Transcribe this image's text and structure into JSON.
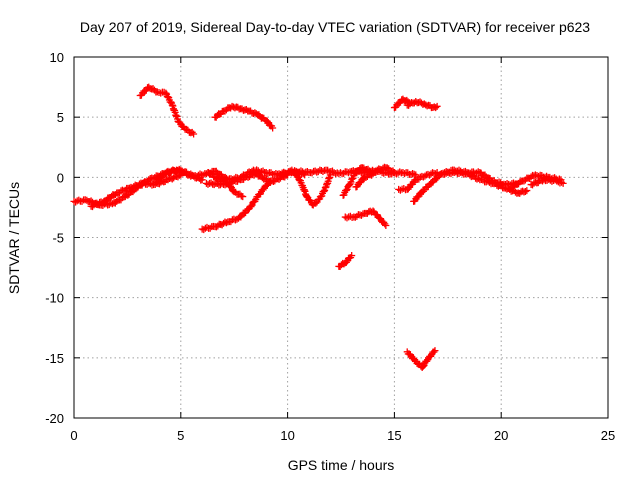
{
  "chart_data": {
    "type": "scatter",
    "title": "Day 207 of 2019, Sidereal Day-to-day VTEC variation (SDTVAR) for receiver p623",
    "xlabel": "GPS time / hours",
    "ylabel": "SDTVAR / TECUs",
    "xlim": [
      0,
      25
    ],
    "ylim": [
      -20,
      10
    ],
    "xticks": [
      0,
      5,
      10,
      15,
      20,
      25
    ],
    "yticks": [
      -20,
      -15,
      -10,
      -5,
      0,
      5,
      10
    ],
    "grid": true,
    "marker": "plus",
    "color": "#ff0000",
    "series": [
      {
        "name": "arc-1",
        "points": [
          [
            0.0,
            -2.0
          ],
          [
            0.6,
            -1.9
          ],
          [
            1.2,
            -2.3
          ],
          [
            1.8,
            -2.2
          ],
          [
            2.4,
            -1.6
          ],
          [
            3.0,
            -0.8
          ],
          [
            3.5,
            -0.2
          ],
          [
            4.2,
            0.3
          ],
          [
            4.8,
            0.6
          ],
          [
            5.4,
            0.2
          ],
          [
            6.0,
            -0.2
          ]
        ]
      },
      {
        "name": "arc-2",
        "points": [
          [
            0.8,
            -2.4
          ],
          [
            1.4,
            -2.0
          ],
          [
            2.0,
            -1.3
          ],
          [
            2.6,
            -0.9
          ],
          [
            3.2,
            -0.5
          ],
          [
            3.8,
            -0.6
          ],
          [
            4.4,
            -0.2
          ],
          [
            5.0,
            0.2
          ]
        ]
      },
      {
        "name": "arc-3",
        "points": [
          [
            3.8,
            -0.4
          ],
          [
            4.4,
            0.5
          ],
          [
            5.0,
            0.6
          ],
          [
            5.6,
            0.1
          ],
          [
            6.2,
            0.3
          ],
          [
            6.6,
            0.5
          ],
          [
            7.2,
            -0.2
          ],
          [
            7.8,
            0.0
          ],
          [
            8.4,
            0.6
          ],
          [
            9.0,
            0.4
          ],
          [
            9.6,
            0.2
          ],
          [
            10.2,
            0.5
          ],
          [
            10.8,
            0.2
          ]
        ]
      },
      {
        "name": "arc-4",
        "points": [
          [
            6.2,
            -0.5
          ],
          [
            7.0,
            -0.6
          ],
          [
            7.8,
            -0.2
          ],
          [
            8.5,
            0.3
          ],
          [
            9.2,
            -0.4
          ],
          [
            10.0,
            0.2
          ]
        ]
      },
      {
        "name": "arc-5",
        "points": [
          [
            3.1,
            6.8
          ],
          [
            3.5,
            7.5
          ],
          [
            3.9,
            7.1
          ],
          [
            4.3,
            7.0
          ],
          [
            4.6,
            6.0
          ],
          [
            4.9,
            4.6
          ],
          [
            5.2,
            4.0
          ],
          [
            5.6,
            3.6
          ]
        ]
      },
      {
        "name": "arc-6",
        "points": [
          [
            6.6,
            5.0
          ],
          [
            7.0,
            5.5
          ],
          [
            7.4,
            5.9
          ],
          [
            7.8,
            5.7
          ],
          [
            8.2,
            5.5
          ],
          [
            8.6,
            5.2
          ],
          [
            9.0,
            4.7
          ],
          [
            9.3,
            4.1
          ]
        ]
      },
      {
        "name": "arc-7",
        "points": [
          [
            6.0,
            -4.3
          ],
          [
            6.6,
            -4.1
          ],
          [
            7.2,
            -3.7
          ],
          [
            7.7,
            -3.4
          ],
          [
            8.2,
            -2.6
          ],
          [
            8.6,
            -1.6
          ],
          [
            8.9,
            -0.9
          ],
          [
            9.2,
            -0.3
          ]
        ]
      },
      {
        "name": "arc-8",
        "points": [
          [
            6.3,
            0.4
          ],
          [
            6.6,
            0.0
          ],
          [
            7.2,
            -0.5
          ],
          [
            7.5,
            -1.2
          ],
          [
            7.9,
            -1.6
          ]
        ]
      },
      {
        "name": "arc-9",
        "points": [
          [
            10.2,
            0.6
          ],
          [
            10.5,
            0.0
          ],
          [
            10.7,
            -0.7
          ],
          [
            10.9,
            -1.6
          ],
          [
            11.2,
            -2.3
          ],
          [
            11.5,
            -1.8
          ],
          [
            11.8,
            -0.8
          ],
          [
            12.0,
            0.2
          ]
        ]
      },
      {
        "name": "arc-10",
        "points": [
          [
            9.6,
            0.3
          ],
          [
            10.4,
            0.5
          ],
          [
            11.0,
            0.4
          ],
          [
            11.8,
            0.6
          ],
          [
            12.4,
            0.3
          ],
          [
            13.0,
            0.5
          ],
          [
            13.6,
            0.4
          ],
          [
            14.2,
            0.5
          ],
          [
            14.8,
            0.3
          ],
          [
            15.4,
            0.4
          ],
          [
            16.0,
            0.2
          ]
        ]
      },
      {
        "name": "arc-11",
        "points": [
          [
            12.7,
            -3.3
          ],
          [
            13.1,
            -3.3
          ],
          [
            13.6,
            -3.0
          ],
          [
            14.0,
            -2.8
          ],
          [
            14.3,
            -3.4
          ],
          [
            14.6,
            -4.0
          ]
        ]
      },
      {
        "name": "arc-12",
        "points": [
          [
            12.4,
            -7.4
          ],
          [
            12.7,
            -7.1
          ],
          [
            13.0,
            -6.5
          ]
        ]
      },
      {
        "name": "arc-13",
        "points": [
          [
            12.6,
            -1.5
          ],
          [
            12.9,
            -0.6
          ],
          [
            13.2,
            0.5
          ],
          [
            13.5,
            0.8
          ],
          [
            13.9,
            0.5
          ],
          [
            14.2,
            0.6
          ],
          [
            14.6,
            0.8
          ],
          [
            15.0,
            0.4
          ]
        ]
      },
      {
        "name": "arc-14",
        "points": [
          [
            13.2,
            -0.8
          ],
          [
            13.6,
            0.0
          ],
          [
            14.0,
            0.3
          ]
        ]
      },
      {
        "name": "arc-15",
        "points": [
          [
            15.6,
            6.0
          ],
          [
            16.0,
            6.3
          ],
          [
            16.4,
            6.1
          ],
          [
            16.8,
            5.8
          ],
          [
            17.0,
            5.9
          ]
        ]
      },
      {
        "name": "arc-16",
        "points": [
          [
            15.0,
            5.8
          ],
          [
            15.4,
            6.5
          ],
          [
            15.7,
            6.2
          ]
        ]
      },
      {
        "name": "arc-17",
        "points": [
          [
            15.6,
            -14.5
          ],
          [
            16.0,
            -15.3
          ],
          [
            16.3,
            -15.8
          ],
          [
            16.6,
            -15.0
          ],
          [
            16.9,
            -14.4
          ]
        ]
      },
      {
        "name": "arc-18",
        "points": [
          [
            15.2,
            -1.0
          ],
          [
            15.6,
            -1.0
          ],
          [
            16.0,
            -0.2
          ],
          [
            16.5,
            0.2
          ],
          [
            17.0,
            0.4
          ]
        ]
      },
      {
        "name": "arc-19",
        "points": [
          [
            15.9,
            -2.0
          ],
          [
            16.3,
            -1.2
          ],
          [
            16.7,
            -0.5
          ],
          [
            17.2,
            0.3
          ],
          [
            17.8,
            0.4
          ],
          [
            18.4,
            0.3
          ],
          [
            19.0,
            -0.2
          ],
          [
            19.6,
            -0.5
          ],
          [
            20.2,
            -0.9
          ],
          [
            20.8,
            -1.3
          ],
          [
            21.2,
            -1.1
          ]
        ]
      },
      {
        "name": "arc-20",
        "points": [
          [
            17.2,
            0.3
          ],
          [
            17.8,
            0.6
          ],
          [
            18.4,
            0.4
          ],
          [
            19.0,
            0.4
          ],
          [
            19.6,
            -0.3
          ],
          [
            20.2,
            -0.6
          ],
          [
            20.8,
            -0.5
          ]
        ]
      },
      {
        "name": "arc-21",
        "points": [
          [
            20.5,
            -0.8
          ],
          [
            21.0,
            -0.3
          ],
          [
            21.6,
            0.2
          ],
          [
            22.2,
            0.0
          ],
          [
            22.8,
            -0.2
          ]
        ]
      },
      {
        "name": "arc-22",
        "points": [
          [
            21.4,
            -0.6
          ],
          [
            22.0,
            -0.2
          ],
          [
            22.6,
            -0.3
          ],
          [
            22.9,
            -0.5
          ]
        ]
      }
    ]
  }
}
